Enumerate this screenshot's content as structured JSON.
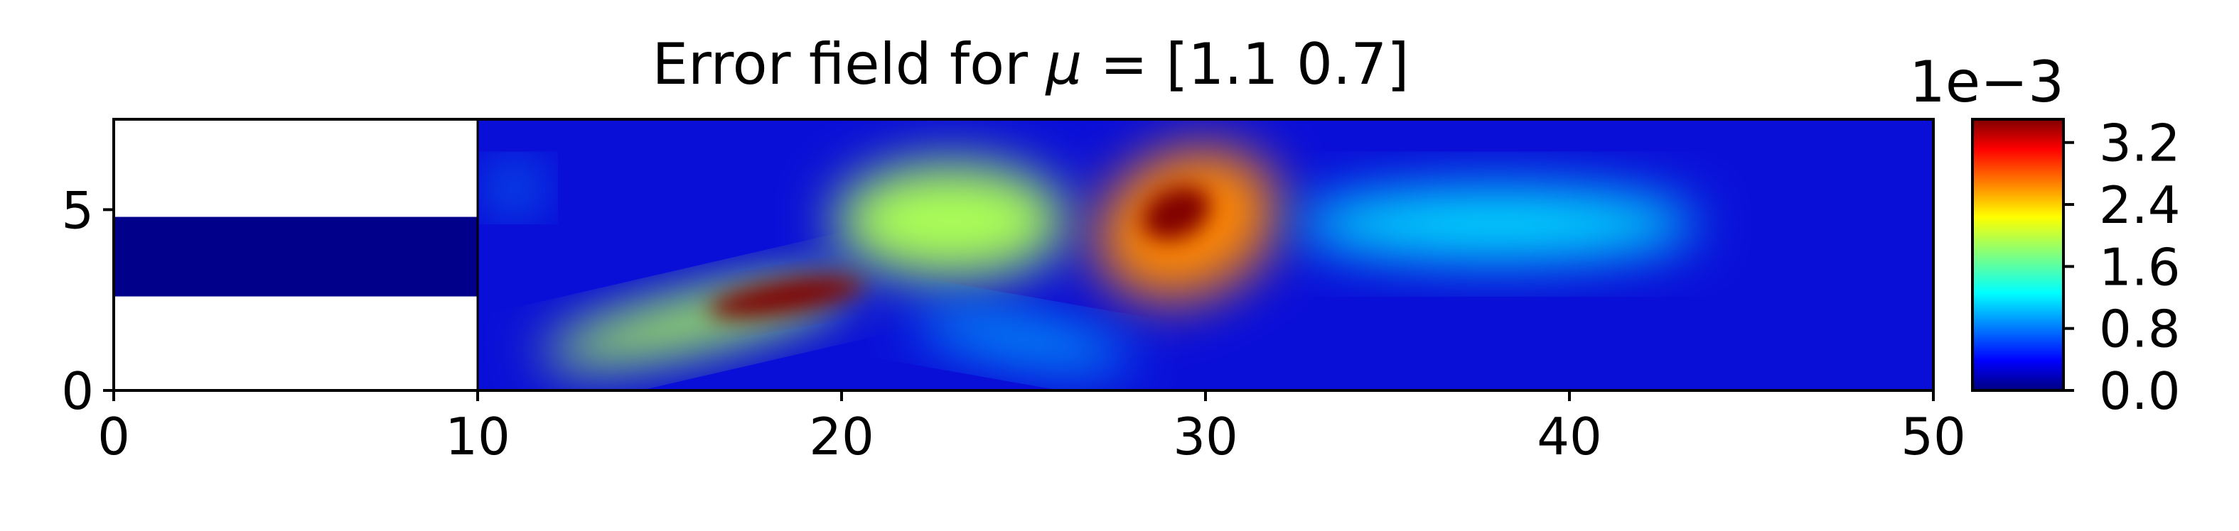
{
  "chart_data": {
    "type": "heatmap",
    "title": "Error field for μ = [1.1 0.7]",
    "title_prefix": "Error field for ",
    "title_mu": "μ",
    "title_suffix": " = [1.1 0.7]",
    "xlim": [
      0,
      50
    ],
    "ylim": [
      0,
      7.5
    ],
    "x_ticks": [
      0,
      10,
      20,
      30,
      40,
      50
    ],
    "x_tick_labels": [
      "0",
      "10",
      "20",
      "30",
      "40",
      "50"
    ],
    "y_ticks": [
      0,
      5
    ],
    "y_tick_labels": [
      "0",
      "5"
    ],
    "xlabel": "",
    "ylabel": "",
    "colormap": "jet",
    "domain": {
      "inlet_channel": {
        "x": [
          0,
          10
        ],
        "y": [
          2.6,
          4.8
        ]
      },
      "main_channel": {
        "x": [
          10,
          50
        ],
        "y": [
          0,
          7.5
        ]
      }
    },
    "colorbar": {
      "scale_label": "1e−3",
      "range": [
        0,
        3.5
      ],
      "ticks": [
        0,
        0.8,
        1.6,
        2.4,
        3.2
      ],
      "tick_labels": [
        "0.0",
        "0.8",
        "1.6",
        "2.4",
        "3.2"
      ]
    },
    "error_blobs": [
      {
        "x": 16,
        "y": 1.9,
        "rx": 4.3,
        "ry": 0.75,
        "angle": -13,
        "value": 1.9
      },
      {
        "x": 18.5,
        "y": 2.6,
        "rx": 2.2,
        "ry": 0.45,
        "angle": -10,
        "value": 3.5
      },
      {
        "x": 23,
        "y": 4.7,
        "rx": 3.2,
        "ry": 1.6,
        "angle": 0,
        "value": 1.9
      },
      {
        "x": 29.5,
        "y": 4.6,
        "rx": 2.6,
        "ry": 2.0,
        "angle": -25,
        "value": 2.6
      },
      {
        "x": 29.2,
        "y": 4.9,
        "rx": 1.0,
        "ry": 0.7,
        "angle": -25,
        "value": 3.6
      },
      {
        "x": 38,
        "y": 4.6,
        "rx": 5.5,
        "ry": 1.0,
        "angle": 0,
        "value": 1.2
      },
      {
        "x": 25,
        "y": 1.4,
        "rx": 3.0,
        "ry": 0.6,
        "angle": 10,
        "value": 1.0
      },
      {
        "x": 11,
        "y": 5.6,
        "rx": 0.6,
        "ry": 0.5,
        "angle": 0,
        "value": 1.0
      }
    ]
  }
}
